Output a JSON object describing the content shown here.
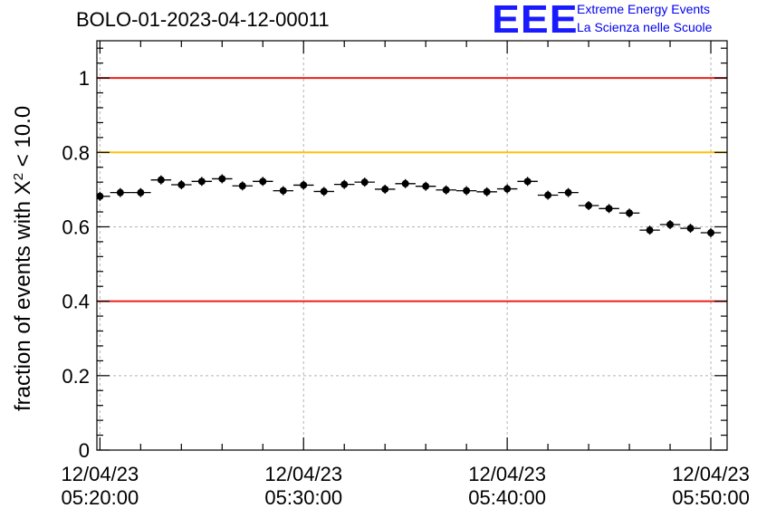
{
  "chart_data": {
    "type": "scatter",
    "title": "BOLO-01-2023-04-12-00011",
    "ylabel_text": "fraction of events with ",
    "ylabel_chi": "X",
    "ylabel_sup": "2",
    "ylabel_suffix": " < 10.0",
    "xlabel": "",
    "ylim": [
      0,
      1.1
    ],
    "xlim_minutes": [
      -0.15,
      30.8
    ],
    "x_tick_label_minutes": [
      0,
      10,
      20,
      30
    ],
    "x_tick_labels": [
      {
        "date": "12/04/23",
        "time": "05:20:00"
      },
      {
        "date": "12/04/23",
        "time": "05:30:00"
      },
      {
        "date": "12/04/23",
        "time": "05:40:00"
      },
      {
        "date": "12/04/23",
        "time": "05:50:00"
      }
    ],
    "y_ticks": [
      {
        "value": 0,
        "label": "0"
      },
      {
        "value": 0.2,
        "label": "0.2"
      },
      {
        "value": 0.4,
        "label": "0.4"
      },
      {
        "value": 0.6,
        "label": "0.6"
      },
      {
        "value": 0.8,
        "label": "0.8"
      },
      {
        "value": 1.0,
        "label": "1"
      }
    ],
    "grid": true,
    "reference_lines": [
      {
        "y": 1.0,
        "color": "#e8221a"
      },
      {
        "y": 0.8,
        "color": "#ffc20a"
      },
      {
        "y": 0.4,
        "color": "#e8221a"
      }
    ],
    "series": [
      {
        "bin_width_minutes": 1,
        "x_minutes": [
          0,
          1,
          2,
          3,
          4,
          5,
          6,
          7,
          8,
          9,
          10,
          11,
          12,
          13,
          14,
          15,
          16,
          17,
          18,
          19,
          20,
          21,
          22,
          23,
          24,
          25,
          26,
          27,
          28,
          29,
          30
        ],
        "y": [
          0.682,
          0.692,
          0.692,
          0.726,
          0.713,
          0.722,
          0.729,
          0.71,
          0.722,
          0.697,
          0.712,
          0.695,
          0.714,
          0.72,
          0.701,
          0.716,
          0.709,
          0.699,
          0.697,
          0.694,
          0.702,
          0.722,
          0.685,
          0.692,
          0.657,
          0.649,
          0.637,
          0.591,
          0.606,
          0.596,
          0.584
        ]
      }
    ]
  },
  "logo": {
    "text": "EEE",
    "line1": "Extreme Energy Events",
    "line2": "La Scienza nelle Scuole"
  }
}
